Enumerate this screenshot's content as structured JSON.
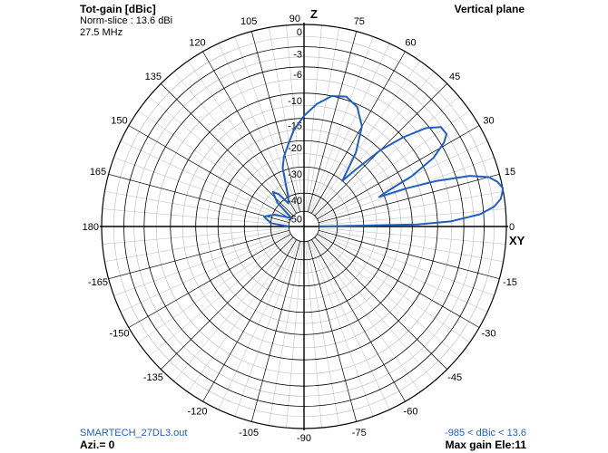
{
  "header": {
    "title": "Tot-gain [dBic]",
    "norm_slice": "Norm-slice : 13.6 dBi",
    "frequency": "27.5 MHz",
    "plane": "Vertical plane"
  },
  "footer": {
    "filename": "SMARTECH_27DL3.out",
    "azimuth": "Azi.= 0",
    "range": "-985 < dBic < 13.6",
    "max_gain": "Max gain Ele:11"
  },
  "axes": {
    "top_label": "Z",
    "right_label": "XY"
  },
  "colors": {
    "pattern": "#1f5fbf",
    "grid": "#b8b8b8",
    "rings": "#000000"
  },
  "chart_data": {
    "type": "polar",
    "unit": "dB",
    "angle_labels": [
      "0",
      "15",
      "30",
      "45",
      "60",
      "75",
      "90",
      "105",
      "120",
      "135",
      "150",
      "165",
      "180",
      "-165",
      "-150",
      "-135",
      "-120",
      "-105",
      "-90",
      "-75",
      "-60",
      "-45",
      "-30",
      "-15"
    ],
    "ring_labels": [
      "0",
      "-3",
      "-6",
      "-10",
      "-15",
      "-20",
      "-30",
      "-40",
      "-50"
    ],
    "pattern": [
      {
        "elev": 0,
        "db": -50
      },
      {
        "elev": 1,
        "db": -14
      },
      {
        "elev": 2,
        "db": -8
      },
      {
        "elev": 4,
        "db": -3.5
      },
      {
        "elev": 6,
        "db": -1.5
      },
      {
        "elev": 8,
        "db": -0.5
      },
      {
        "elev": 10,
        "db": -0.1
      },
      {
        "elev": 11,
        "db": 0
      },
      {
        "elev": 13,
        "db": -0.5
      },
      {
        "elev": 15,
        "db": -1.5
      },
      {
        "elev": 17,
        "db": -4
      },
      {
        "elev": 19,
        "db": -9
      },
      {
        "elev": 20.5,
        "db": -15
      },
      {
        "elev": 21.5,
        "db": -22
      },
      {
        "elev": 23,
        "db": -19
      },
      {
        "elev": 25,
        "db": -13
      },
      {
        "elev": 28,
        "db": -8
      },
      {
        "elev": 31,
        "db": -5.5
      },
      {
        "elev": 33,
        "db": -4.5
      },
      {
        "elev": 36,
        "db": -4.6
      },
      {
        "elev": 39,
        "db": -6.5
      },
      {
        "elev": 42,
        "db": -10
      },
      {
        "elev": 45,
        "db": -15
      },
      {
        "elev": 48,
        "db": -24
      },
      {
        "elev": 50,
        "db": -30
      },
      {
        "elev": 55,
        "db": -19
      },
      {
        "elev": 60,
        "db": -13.5
      },
      {
        "elev": 66,
        "db": -10.5
      },
      {
        "elev": 72,
        "db": -9.5
      },
      {
        "elev": 78,
        "db": -10
      },
      {
        "elev": 84,
        "db": -12
      },
      {
        "elev": 90,
        "db": -14.5
      },
      {
        "elev": 96,
        "db": -17.5
      },
      {
        "elev": 101,
        "db": -21
      },
      {
        "elev": 106,
        "db": -25
      },
      {
        "elev": 110,
        "db": -29
      },
      {
        "elev": 118,
        "db": -40
      },
      {
        "elev": 124,
        "db": -43
      },
      {
        "elev": 128,
        "db": -37
      },
      {
        "elev": 132,
        "db": -35
      },
      {
        "elev": 138,
        "db": -39
      },
      {
        "elev": 146,
        "db": -50
      },
      {
        "elev": 158,
        "db": -41
      },
      {
        "elev": 166,
        "db": -37
      },
      {
        "elev": 174,
        "db": -40
      },
      {
        "elev": 178,
        "db": -48
      },
      {
        "elev": 180,
        "db": -50
      }
    ]
  }
}
